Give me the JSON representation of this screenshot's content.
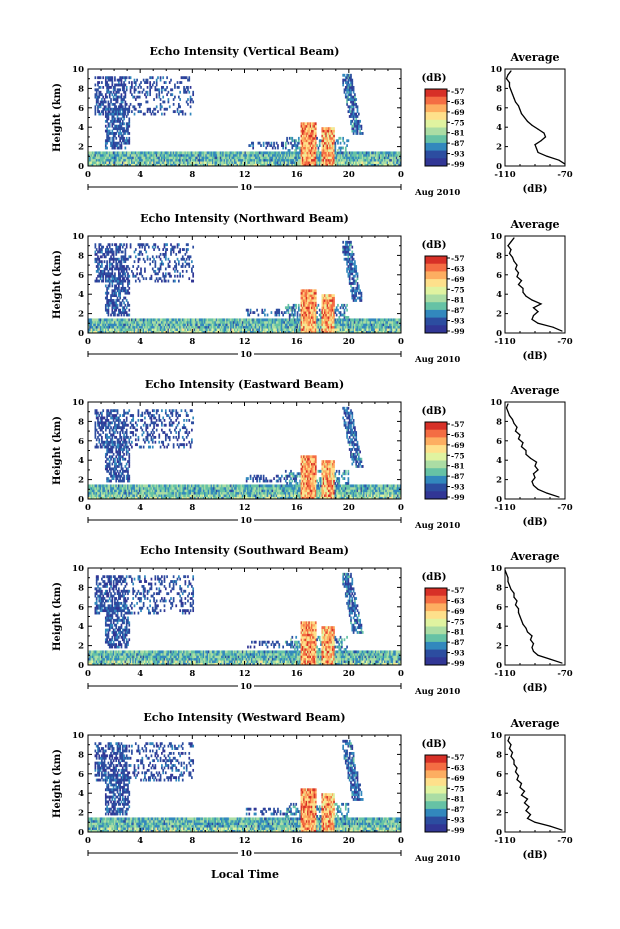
{
  "figure": {
    "xlabel": "Local Time",
    "date_label": "Aug 2010",
    "date_day": "10",
    "cbar_unit": "(dB)",
    "cbar_ticks": [
      "-57",
      "-63",
      "-69",
      "-75",
      "-81",
      "-87",
      "-93",
      "-99"
    ],
    "cbar_colors": [
      "#d73027",
      "#f46d43",
      "#fdae61",
      "#fee08b",
      "#e0f3a0",
      "#abdda4",
      "#66c2a5",
      "#3288bd",
      "#2c4da0",
      "#313695"
    ]
  },
  "chart_data": [
    {
      "type": "heatmap",
      "title": "Echo Intensity (Vertical Beam)",
      "ylabel": "Height (km)",
      "x_ticks": [
        "0",
        "4",
        "8",
        "12",
        "16",
        "20",
        "0"
      ],
      "y_ticks": [
        "0",
        "2",
        "4",
        "6",
        "8",
        "10"
      ],
      "xlim": [
        0,
        24
      ],
      "ylim": [
        0,
        10
      ],
      "profile": {
        "title": "Average",
        "xlabel": "(dB)",
        "x_ticks": [
          "-110",
          "-70"
        ],
        "xlim": [
          -110,
          -70
        ],
        "values": [
          [
            -70,
            0.2
          ],
          [
            -74,
            0.6
          ],
          [
            -82,
            1.0
          ],
          [
            -88,
            1.4
          ],
          [
            -89,
            1.8
          ],
          [
            -90,
            2.2
          ],
          [
            -86,
            2.6
          ],
          [
            -83,
            3.0
          ],
          [
            -84,
            3.4
          ],
          [
            -88,
            3.8
          ],
          [
            -92,
            4.2
          ],
          [
            -95,
            4.6
          ],
          [
            -97,
            5.0
          ],
          [
            -99,
            5.4
          ],
          [
            -100,
            5.8
          ],
          [
            -101,
            6.2
          ],
          [
            -103,
            6.6
          ],
          [
            -104,
            7.0
          ],
          [
            -105,
            7.4
          ],
          [
            -106,
            7.8
          ],
          [
            -107,
            8.2
          ],
          [
            -107,
            8.6
          ],
          [
            -109,
            9.0
          ],
          [
            -108,
            9.4
          ],
          [
            -106,
            9.8
          ]
        ]
      }
    },
    {
      "type": "heatmap",
      "title": "Echo Intensity (Northward Beam)",
      "ylabel": "Height (km)",
      "x_ticks": [
        "0",
        "4",
        "8",
        "12",
        "16",
        "20",
        "0"
      ],
      "y_ticks": [
        "0",
        "2",
        "4",
        "6",
        "8",
        "10"
      ],
      "xlim": [
        0,
        24
      ],
      "ylim": [
        0,
        10
      ],
      "profile": {
        "title": "Average",
        "xlabel": "(dB)",
        "x_ticks": [
          "-110",
          "-70"
        ],
        "xlim": [
          -110,
          -70
        ],
        "values": [
          [
            -72,
            0.2
          ],
          [
            -78,
            0.6
          ],
          [
            -88,
            1.0
          ],
          [
            -92,
            1.4
          ],
          [
            -91,
            1.8
          ],
          [
            -88,
            2.2
          ],
          [
            -91,
            2.6
          ],
          [
            -86,
            3.0
          ],
          [
            -92,
            3.4
          ],
          [
            -96,
            3.8
          ],
          [
            -98,
            4.2
          ],
          [
            -98,
            4.6
          ],
          [
            -101,
            5.0
          ],
          [
            -99,
            5.4
          ],
          [
            -102,
            5.8
          ],
          [
            -101,
            6.2
          ],
          [
            -103,
            6.6
          ],
          [
            -102,
            7.0
          ],
          [
            -104,
            7.4
          ],
          [
            -105,
            7.8
          ],
          [
            -107,
            8.2
          ],
          [
            -106,
            8.6
          ],
          [
            -108,
            9.0
          ],
          [
            -106,
            9.4
          ],
          [
            -104,
            9.8
          ]
        ]
      }
    },
    {
      "type": "heatmap",
      "title": "Echo Intensity (Eastward Beam)",
      "ylabel": "Height (km)",
      "x_ticks": [
        "0",
        "4",
        "8",
        "12",
        "16",
        "20",
        "0"
      ],
      "y_ticks": [
        "0",
        "2",
        "4",
        "6",
        "8",
        "10"
      ],
      "xlim": [
        0,
        24
      ],
      "ylim": [
        0,
        10
      ],
      "profile": {
        "title": "Average",
        "xlabel": "(dB)",
        "x_ticks": [
          "-110",
          "-70"
        ],
        "xlim": [
          -110,
          -70
        ],
        "values": [
          [
            -74,
            0.2
          ],
          [
            -82,
            0.6
          ],
          [
            -88,
            1.0
          ],
          [
            -91,
            1.4
          ],
          [
            -92,
            1.8
          ],
          [
            -90,
            2.2
          ],
          [
            -91,
            2.6
          ],
          [
            -88,
            3.0
          ],
          [
            -90,
            3.4
          ],
          [
            -89,
            3.8
          ],
          [
            -93,
            4.2
          ],
          [
            -96,
            4.6
          ],
          [
            -96,
            5.0
          ],
          [
            -99,
            5.4
          ],
          [
            -98,
            5.8
          ],
          [
            -101,
            6.2
          ],
          [
            -100,
            6.6
          ],
          [
            -103,
            7.0
          ],
          [
            -102,
            7.4
          ],
          [
            -104,
            7.8
          ],
          [
            -105,
            8.2
          ],
          [
            -107,
            8.6
          ],
          [
            -108,
            9.0
          ],
          [
            -109,
            9.4
          ],
          [
            -108,
            9.8
          ]
        ]
      }
    },
    {
      "type": "heatmap",
      "title": "Echo Intensity (Southward Beam)",
      "ylabel": "Height (km)",
      "x_ticks": [
        "0",
        "4",
        "8",
        "12",
        "16",
        "20",
        "0"
      ],
      "y_ticks": [
        "0",
        "2",
        "4",
        "6",
        "8",
        "10"
      ],
      "xlim": [
        0,
        24
      ],
      "ylim": [
        0,
        10
      ],
      "profile": {
        "title": "Average",
        "xlabel": "(dB)",
        "x_ticks": [
          "-110",
          "-70"
        ],
        "xlim": [
          -110,
          -70
        ],
        "values": [
          [
            -72,
            0.2
          ],
          [
            -80,
            0.6
          ],
          [
            -88,
            1.0
          ],
          [
            -91,
            1.4
          ],
          [
            -92,
            1.8
          ],
          [
            -91,
            2.2
          ],
          [
            -93,
            2.6
          ],
          [
            -92,
            3.0
          ],
          [
            -95,
            3.4
          ],
          [
            -96,
            3.8
          ],
          [
            -98,
            4.2
          ],
          [
            -99,
            4.6
          ],
          [
            -100,
            5.0
          ],
          [
            -101,
            5.4
          ],
          [
            -101,
            5.8
          ],
          [
            -103,
            6.2
          ],
          [
            -102,
            6.6
          ],
          [
            -104,
            7.0
          ],
          [
            -104,
            7.4
          ],
          [
            -106,
            7.8
          ],
          [
            -107,
            8.2
          ],
          [
            -108,
            8.6
          ],
          [
            -108,
            9.0
          ],
          [
            -109,
            9.4
          ],
          [
            -110,
            9.8
          ]
        ]
      }
    },
    {
      "type": "heatmap",
      "title": "Echo Intensity (Westward Beam)",
      "ylabel": "Height (km)",
      "x_ticks": [
        "0",
        "4",
        "8",
        "12",
        "16",
        "20",
        "0"
      ],
      "y_ticks": [
        "0",
        "2",
        "4",
        "6",
        "8",
        "10"
      ],
      "xlim": [
        0,
        24
      ],
      "ylim": [
        0,
        10
      ],
      "profile": {
        "title": "Average",
        "xlabel": "(dB)",
        "x_ticks": [
          "-110",
          "-70"
        ],
        "xlim": [
          -110,
          -70
        ],
        "values": [
          [
            -72,
            0.2
          ],
          [
            -80,
            0.6
          ],
          [
            -90,
            1.0
          ],
          [
            -95,
            1.4
          ],
          [
            -93,
            1.8
          ],
          [
            -96,
            2.2
          ],
          [
            -94,
            2.6
          ],
          [
            -97,
            3.0
          ],
          [
            -95,
            3.4
          ],
          [
            -99,
            3.8
          ],
          [
            -97,
            4.2
          ],
          [
            -100,
            4.6
          ],
          [
            -99,
            5.0
          ],
          [
            -102,
            5.4
          ],
          [
            -101,
            5.8
          ],
          [
            -103,
            6.2
          ],
          [
            -102,
            6.6
          ],
          [
            -104,
            7.0
          ],
          [
            -104,
            7.4
          ],
          [
            -106,
            7.8
          ],
          [
            -105,
            8.2
          ],
          [
            -107,
            8.6
          ],
          [
            -106,
            9.0
          ],
          [
            -108,
            9.4
          ],
          [
            -107,
            9.8
          ]
        ]
      }
    }
  ]
}
